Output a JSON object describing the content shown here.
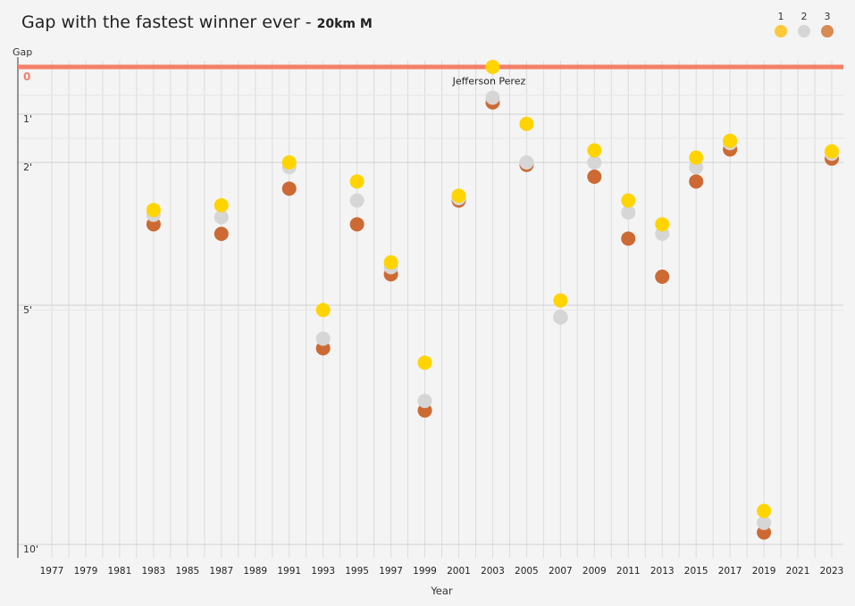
{
  "chart_data": {
    "type": "scatter",
    "title": "Gap with the fastest winner ever",
    "subtitle": "20km M",
    "xlabel": "Year",
    "ylabel": "Gap",
    "y_unit": "minutes",
    "x_ticks": [
      1977,
      1979,
      1981,
      1983,
      1985,
      1987,
      1989,
      1991,
      1993,
      1995,
      1997,
      1999,
      2001,
      2003,
      2005,
      2007,
      2009,
      2011,
      2013,
      2015,
      2017,
      2019,
      2021,
      2023
    ],
    "y_ticks": [
      {
        "value": 0,
        "label": "0"
      },
      {
        "value": 1,
        "label": "1'"
      },
      {
        "value": 2,
        "label": "2'"
      },
      {
        "value": 5,
        "label": "5'"
      },
      {
        "value": 10,
        "label": "10'"
      }
    ],
    "ylim": [
      0,
      10
    ],
    "grid": true,
    "legend": {
      "position": "top-right",
      "entries": [
        "1",
        "2",
        "3"
      ]
    },
    "colors": {
      "1": "#ffd400",
      "2": "#d6d6d6",
      "3": "#cd6a33",
      "best_line": "#f48067"
    },
    "series": [
      {
        "name": "1",
        "points": [
          {
            "x": 1983,
            "y": 3.0
          },
          {
            "x": 1987,
            "y": 2.9
          },
          {
            "x": 1991,
            "y": 2.0
          },
          {
            "x": 1993,
            "y": 5.1
          },
          {
            "x": 1995,
            "y": 2.4
          },
          {
            "x": 1997,
            "y": 4.1
          },
          {
            "x": 1999,
            "y": 6.2
          },
          {
            "x": 2001,
            "y": 2.7
          },
          {
            "x": 2003,
            "y": 0.0
          },
          {
            "x": 2005,
            "y": 1.2
          },
          {
            "x": 2007,
            "y": 4.9
          },
          {
            "x": 2009,
            "y": 1.75
          },
          {
            "x": 2011,
            "y": 2.8
          },
          {
            "x": 2013,
            "y": 3.3
          },
          {
            "x": 2015,
            "y": 1.9
          },
          {
            "x": 2017,
            "y": 1.55
          },
          {
            "x": 2019,
            "y": 9.3
          },
          {
            "x": 2023,
            "y": 1.77
          }
        ]
      },
      {
        "name": "2",
        "points": [
          {
            "x": 1983,
            "y": 3.1
          },
          {
            "x": 1987,
            "y": 3.15
          },
          {
            "x": 1991,
            "y": 2.1
          },
          {
            "x": 1993,
            "y": 5.7
          },
          {
            "x": 1995,
            "y": 2.8
          },
          {
            "x": 1997,
            "y": 4.2
          },
          {
            "x": 1999,
            "y": 7.0
          },
          {
            "x": 2001,
            "y": 2.75
          },
          {
            "x": 2003,
            "y": 0.65
          },
          {
            "x": 2005,
            "y": 2.0
          },
          {
            "x": 2007,
            "y": 5.25
          },
          {
            "x": 2009,
            "y": 2.0
          },
          {
            "x": 2011,
            "y": 3.05
          },
          {
            "x": 2013,
            "y": 3.5
          },
          {
            "x": 2015,
            "y": 2.1
          },
          {
            "x": 2017,
            "y": 1.6
          },
          {
            "x": 2019,
            "y": 9.55
          },
          {
            "x": 2023,
            "y": 1.82
          }
        ]
      },
      {
        "name": "3",
        "points": [
          {
            "x": 1983,
            "y": 3.3
          },
          {
            "x": 1987,
            "y": 3.5
          },
          {
            "x": 1991,
            "y": 2.55
          },
          {
            "x": 1993,
            "y": 5.9
          },
          {
            "x": 1995,
            "y": 3.3
          },
          {
            "x": 1997,
            "y": 4.35
          },
          {
            "x": 1999,
            "y": 7.2
          },
          {
            "x": 2001,
            "y": 2.8
          },
          {
            "x": 2003,
            "y": 0.75
          },
          {
            "x": 2005,
            "y": 2.05
          },
          {
            "x": 2007,
            "y": 5.25
          },
          {
            "x": 2009,
            "y": 2.3
          },
          {
            "x": 2011,
            "y": 3.6
          },
          {
            "x": 2013,
            "y": 4.4
          },
          {
            "x": 2015,
            "y": 2.4
          },
          {
            "x": 2017,
            "y": 1.73
          },
          {
            "x": 2019,
            "y": 9.75
          },
          {
            "x": 2023,
            "y": 1.92
          }
        ]
      }
    ],
    "annotations": [
      {
        "x": 2003,
        "y": 0.35,
        "text": "Jefferson Perez"
      }
    ]
  }
}
